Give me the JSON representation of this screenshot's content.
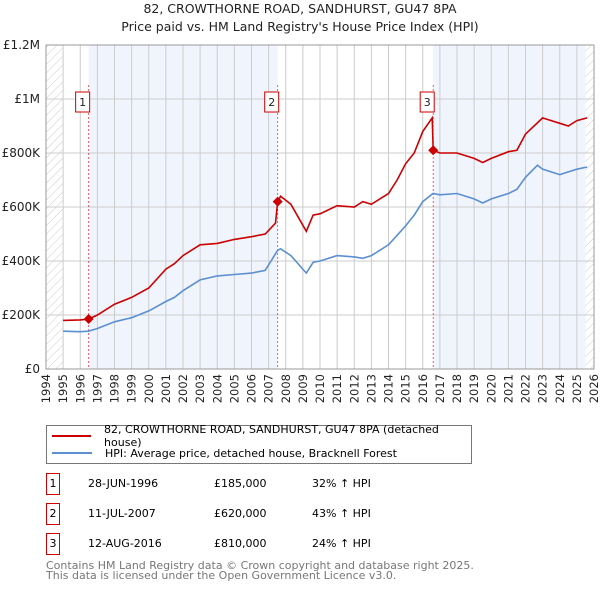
{
  "title": "82, CROWTHORNE ROAD, SANDHURST, GU47 8PA",
  "subtitle": "Price paid vs. HM Land Registry's House Price Index (HPI)",
  "chart_data": {
    "type": "line",
    "xlim": [
      1994,
      2026
    ],
    "ylim": [
      0,
      1200000
    ],
    "x_ticks": [
      "1994",
      "1995",
      "1996",
      "1997",
      "1998",
      "1999",
      "2000",
      "2001",
      "2002",
      "2003",
      "2004",
      "2005",
      "2006",
      "2007",
      "2008",
      "2009",
      "2010",
      "2011",
      "2012",
      "2013",
      "2014",
      "2015",
      "2016",
      "2017",
      "2018",
      "2019",
      "2020",
      "2021",
      "2022",
      "2023",
      "2024",
      "2025",
      "2026"
    ],
    "y_ticks": [
      {
        "v": 0,
        "label": "£0"
      },
      {
        "v": 200000,
        "label": "£200K"
      },
      {
        "v": 400000,
        "label": "£400K"
      },
      {
        "v": 600000,
        "label": "£600K"
      },
      {
        "v": 800000,
        "label": "£800K"
      },
      {
        "v": 1000000,
        "label": "£1M"
      },
      {
        "v": 1200000,
        "label": "£1.2M"
      }
    ],
    "series": [
      {
        "name": "82, CROWTHORNE ROAD, SANDHURST, GU47 8PA (detached house)",
        "color": "#cc0000",
        "x": [
          1995,
          1996,
          1996.49,
          1997,
          1998,
          1999,
          2000,
          2001,
          2001.5,
          2002,
          2003,
          2004,
          2005,
          2006,
          2006.8,
          2007.4,
          2007.53,
          2007.7,
          2008.3,
          2009.2,
          2009.6,
          2010,
          2011,
          2012,
          2012.5,
          2013,
          2014,
          2014.5,
          2015,
          2015.5,
          2016,
          2016.55,
          2016.61,
          2017,
          2018,
          2019,
          2019.5,
          2020,
          2021,
          2021.5,
          2022,
          2023,
          2023.5,
          2024,
          2024.5,
          2025,
          2025.6
        ],
        "y": [
          180000,
          182000,
          185000,
          200000,
          240000,
          265000,
          300000,
          370000,
          390000,
          420000,
          460000,
          465000,
          480000,
          490000,
          500000,
          540000,
          620000,
          640000,
          610000,
          510000,
          570000,
          575000,
          605000,
          600000,
          620000,
          610000,
          650000,
          700000,
          760000,
          800000,
          880000,
          930000,
          810000,
          800000,
          800000,
          780000,
          765000,
          780000,
          805000,
          810000,
          870000,
          930000,
          920000,
          910000,
          900000,
          920000,
          930000
        ]
      },
      {
        "name": "HPI: Average price, detached house, Bracknell Forest",
        "color": "#5b8fd0",
        "x": [
          1995,
          1996,
          1996.49,
          1997,
          1998,
          1999,
          2000,
          2001,
          2001.5,
          2002,
          2003,
          2004,
          2005,
          2006,
          2006.8,
          2007.53,
          2007.7,
          2008.3,
          2009.2,
          2009.6,
          2010,
          2011,
          2012,
          2012.5,
          2013,
          2014,
          2014.5,
          2015,
          2015.5,
          2016,
          2016.6,
          2017,
          2018,
          2019,
          2019.5,
          2020,
          2021,
          2021.5,
          2022,
          2022.7,
          2023,
          2023.5,
          2024,
          2024.5,
          2025,
          2025.6
        ],
        "y": [
          140000,
          138000,
          140000,
          150000,
          175000,
          190000,
          215000,
          250000,
          265000,
          290000,
          330000,
          345000,
          350000,
          355000,
          365000,
          440000,
          445000,
          420000,
          355000,
          395000,
          400000,
          420000,
          415000,
          410000,
          420000,
          460000,
          495000,
          530000,
          570000,
          620000,
          650000,
          645000,
          650000,
          630000,
          615000,
          630000,
          650000,
          665000,
          710000,
          755000,
          740000,
          730000,
          720000,
          730000,
          740000,
          748000
        ]
      }
    ],
    "sales": [
      {
        "n": "1",
        "x": 1996.49,
        "y": 185000,
        "date": "28-JUN-1996",
        "price": "£185,000",
        "hpi": "32% ↑ HPI"
      },
      {
        "n": "2",
        "x": 2007.53,
        "y": 620000,
        "date": "11-JUL-2007",
        "price": "£620,000",
        "hpi": "43% ↑ HPI"
      },
      {
        "n": "3",
        "x": 2016.61,
        "y": 810000,
        "date": "12-AUG-2016",
        "price": "£810,000",
        "hpi": "24% ↑ HPI"
      }
    ],
    "data_range": [
      1995,
      2025.5
    ]
  },
  "legend": {
    "red": "82, CROWTHORNE ROAD, SANDHURST, GU47 8PA (detached house)",
    "blue": "HPI: Average price, detached house, Bracknell Forest"
  },
  "footer": {
    "line1": "Contains HM Land Registry data © Crown copyright and database right 2025.",
    "line2": "This data is licensed under the Open Government Licence v3.0."
  }
}
